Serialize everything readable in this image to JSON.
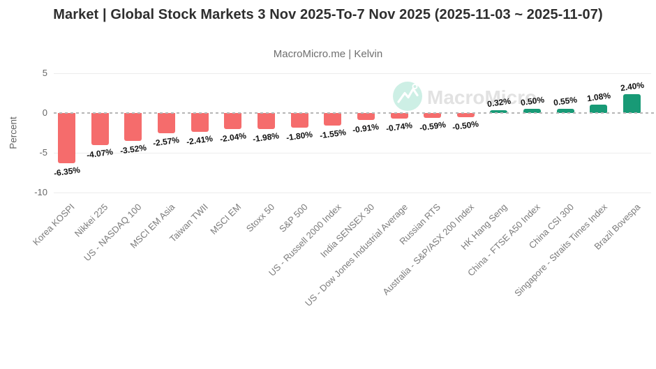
{
  "header": {
    "title": "Market | Global Stock Markets 3 Nov 2025-To-7 Nov 2025 (2025-11-03 ~ 2025-11-07)",
    "subtitle": "MacroMicro.me | Kelvin"
  },
  "watermark": {
    "text": "MacroMicro",
    "icon": "macromicro-logo-icon",
    "circle_color": "#CDEFE5",
    "text_color": "#E2E2E2"
  },
  "chart_data": {
    "type": "bar",
    "title": "Market | Global Stock Markets 3 Nov 2025-To-7 Nov 2025 (2025-11-03 ~ 2025-11-07)",
    "subtitle": "MacroMicro.me | Kelvin",
    "categories": [
      "Korea KOSPI",
      "Nikkei 225",
      "US - NASDAQ 100",
      "MSCI EM Asia",
      "Taiwan TWII",
      "MSCI EM",
      "Stoxx 50",
      "S&P 500",
      "US - Russell 2000 Index",
      "India SENSEX 30",
      "US - Dow Jones Industrial Average",
      "Russian RTS",
      "Australia - S&P/ASX 200 Index",
      "HK Hang Seng",
      "China - FTSE A50 Index",
      "China CSI 300",
      "Singapore - Straits Times Index",
      "Brazil Bovespa"
    ],
    "values": [
      -6.35,
      -4.07,
      -3.52,
      -2.57,
      -2.41,
      -2.04,
      -1.98,
      -1.8,
      -1.55,
      -0.91,
      -0.74,
      -0.59,
      -0.5,
      0.32,
      0.5,
      0.55,
      1.08,
      2.4
    ],
    "value_labels": [
      "-6.35%",
      "-4.07%",
      "-3.52%",
      "-2.57%",
      "-2.41%",
      "-2.04%",
      "-1.98%",
      "-1.80%",
      "-1.55%",
      "-0.91%",
      "-0.74%",
      "-0.59%",
      "-0.50%",
      "0.32%",
      "0.50%",
      "0.55%",
      "1.08%",
      "2.40%"
    ],
    "xlabel": "",
    "ylabel": "Percent",
    "yticks": [
      5,
      0,
      -5,
      -10
    ],
    "ytick_labels": [
      "5",
      "0",
      "-5",
      "-10"
    ],
    "ylim": [
      -10,
      5
    ],
    "grid": "horizontal",
    "zero_line": "dashed",
    "legend": "none",
    "colors": {
      "negative": "#F56C6C",
      "positive": "#189A76"
    }
  }
}
